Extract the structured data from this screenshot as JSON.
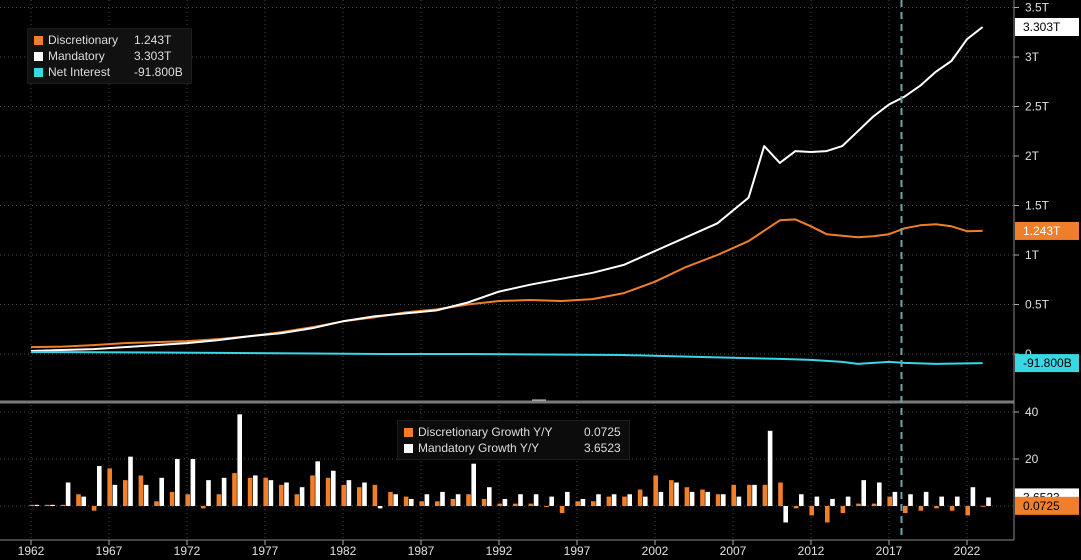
{
  "chart_data": [
    {
      "type": "line",
      "title": "",
      "xlabel": "",
      "ylabel": "",
      "x_range": [
        1962,
        2024
      ],
      "ylim": [
        -0.1,
        3.5
      ],
      "y_ticks": [
        0,
        0.5,
        1,
        1.5,
        2,
        2.5,
        3,
        3.5
      ],
      "y_tick_labels": [
        "0",
        "0.5T",
        "1T",
        "1.5T",
        "2T",
        "2.5T",
        "3T",
        "3.5T"
      ],
      "grid": true,
      "legend_position": "top-left",
      "vertical_marker_x": 2017.8,
      "series": [
        {
          "name": "Discretionary",
          "legend_value": "1.243T",
          "last_label": "1.243T",
          "color": "#f07f2b",
          "points": [
            [
              1962,
              0.07
            ],
            [
              1964,
              0.075
            ],
            [
              1966,
              0.09
            ],
            [
              1968,
              0.11
            ],
            [
              1970,
              0.12
            ],
            [
              1972,
              0.13
            ],
            [
              1974,
              0.15
            ],
            [
              1976,
              0.18
            ],
            [
              1978,
              0.22
            ],
            [
              1980,
              0.27
            ],
            [
              1982,
              0.33
            ],
            [
              1984,
              0.37
            ],
            [
              1986,
              0.42
            ],
            [
              1988,
              0.45
            ],
            [
              1990,
              0.5
            ],
            [
              1992,
              0.535
            ],
            [
              1994,
              0.545
            ],
            [
              1996,
              0.535
            ],
            [
              1998,
              0.555
            ],
            [
              2000,
              0.615
            ],
            [
              2002,
              0.73
            ],
            [
              2004,
              0.88
            ],
            [
              2006,
              1.0
            ],
            [
              2008,
              1.14
            ],
            [
              2010,
              1.35
            ],
            [
              2011,
              1.36
            ],
            [
              2012,
              1.29
            ],
            [
              2013,
              1.21
            ],
            [
              2015,
              1.18
            ],
            [
              2016,
              1.19
            ],
            [
              2017,
              1.21
            ],
            [
              2018,
              1.27
            ],
            [
              2019,
              1.3
            ],
            [
              2020,
              1.31
            ],
            [
              2021,
              1.29
            ],
            [
              2022,
              1.24
            ],
            [
              2023,
              1.243
            ]
          ]
        },
        {
          "name": "Mandatory",
          "legend_value": "3.303T",
          "last_label": "3.303T",
          "color": "#ffffff",
          "points": [
            [
              1962,
              0.03
            ],
            [
              1964,
              0.04
            ],
            [
              1966,
              0.05
            ],
            [
              1968,
              0.07
            ],
            [
              1970,
              0.09
            ],
            [
              1972,
              0.11
            ],
            [
              1974,
              0.14
            ],
            [
              1976,
              0.18
            ],
            [
              1978,
              0.21
            ],
            [
              1980,
              0.26
            ],
            [
              1982,
              0.33
            ],
            [
              1984,
              0.38
            ],
            [
              1986,
              0.41
            ],
            [
              1988,
              0.44
            ],
            [
              1990,
              0.52
            ],
            [
              1992,
              0.63
            ],
            [
              1994,
              0.7
            ],
            [
              1996,
              0.76
            ],
            [
              1998,
              0.82
            ],
            [
              2000,
              0.9
            ],
            [
              2002,
              1.04
            ],
            [
              2004,
              1.18
            ],
            [
              2006,
              1.32
            ],
            [
              2008,
              1.58
            ],
            [
              2009,
              2.1
            ],
            [
              2010,
              1.93
            ],
            [
              2011,
              2.05
            ],
            [
              2012,
              2.04
            ],
            [
              2013,
              2.05
            ],
            [
              2014,
              2.1
            ],
            [
              2015,
              2.25
            ],
            [
              2016,
              2.4
            ],
            [
              2017,
              2.52
            ],
            [
              2018,
              2.6
            ],
            [
              2019,
              2.71
            ],
            [
              2020,
              2.85
            ],
            [
              2021,
              2.96
            ],
            [
              2022,
              3.18
            ],
            [
              2023,
              3.303
            ]
          ]
        },
        {
          "name": "Net Interest",
          "legend_value": "-91.800B",
          "last_label": "-91.800B",
          "color": "#39d6e6",
          "points": [
            [
              1962,
              0.02
            ],
            [
              1970,
              0.015
            ],
            [
              1980,
              0.005
            ],
            [
              1985,
              0.0
            ],
            [
              1990,
              0.0
            ],
            [
              1995,
              -0.005
            ],
            [
              2000,
              -0.01
            ],
            [
              2005,
              -0.03
            ],
            [
              2010,
              -0.05
            ],
            [
              2012,
              -0.06
            ],
            [
              2014,
              -0.08
            ],
            [
              2015,
              -0.1
            ],
            [
              2016,
              -0.09
            ],
            [
              2017,
              -0.08
            ],
            [
              2018,
              -0.09
            ],
            [
              2020,
              -0.1
            ],
            [
              2023,
              -0.0918
            ]
          ]
        }
      ]
    },
    {
      "type": "bar",
      "title": "",
      "xlabel": "",
      "ylabel": "",
      "x_range": [
        1962,
        2024
      ],
      "ylim": [
        -10,
        40
      ],
      "y_ticks": [
        20,
        40
      ],
      "y_tick_labels": [
        "20",
        "40"
      ],
      "x_ticks": [
        1962,
        1967,
        1972,
        1977,
        1982,
        1987,
        1992,
        1997,
        2002,
        2007,
        2012,
        2017,
        2022
      ],
      "grid": true,
      "legend_position": "top-center",
      "vertical_marker_x": 2017.8,
      "categories": [
        1962,
        1963,
        1964,
        1965,
        1966,
        1967,
        1968,
        1969,
        1970,
        1971,
        1972,
        1973,
        1974,
        1975,
        1976,
        1977,
        1978,
        1979,
        1980,
        1981,
        1982,
        1983,
        1984,
        1985,
        1986,
        1987,
        1988,
        1989,
        1990,
        1991,
        1992,
        1993,
        1994,
        1995,
        1996,
        1997,
        1998,
        1999,
        2000,
        2001,
        2002,
        2003,
        2004,
        2005,
        2006,
        2007,
        2008,
        2009,
        2010,
        2011,
        2012,
        2013,
        2014,
        2015,
        2016,
        2017,
        2018,
        2019,
        2020,
        2021,
        2022,
        2023
      ],
      "series": [
        {
          "name": "Discretionary Growth Y/Y",
          "legend_value": "0.0725",
          "last_label": "0.0725",
          "color": "#f07f2b",
          "values": [
            0.5,
            0.5,
            0.5,
            5,
            -2,
            16,
            11,
            13,
            2,
            6,
            5,
            -1,
            5,
            14,
            12,
            12,
            9,
            5,
            13,
            12,
            9,
            8,
            9,
            6,
            4,
            2,
            2,
            3,
            5,
            3,
            1,
            1,
            1,
            0,
            -3,
            2,
            2,
            4,
            4,
            7,
            13,
            11,
            8,
            7,
            5,
            9,
            9,
            9,
            10,
            -1,
            -4,
            -7,
            -3,
            1,
            1,
            4,
            -3,
            -2,
            -1,
            -2,
            -4,
            0.0725
          ]
        },
        {
          "name": "Mandatory Growth Y/Y",
          "legend_value": "3.6523",
          "last_label": "3.6523",
          "color": "#ffffff",
          "values": [
            0.5,
            0.5,
            10,
            4,
            17,
            9,
            21,
            9,
            12,
            20,
            20,
            11,
            12,
            39,
            13,
            11,
            10,
            8,
            19,
            15,
            11,
            10,
            -1,
            5,
            3,
            5,
            6,
            5,
            18,
            8,
            3,
            5,
            5,
            4,
            6,
            3,
            5,
            5,
            5,
            4,
            6,
            10,
            6,
            6,
            5,
            4,
            9,
            32,
            -7,
            5,
            4,
            3,
            4,
            11,
            10,
            6,
            5,
            6,
            4,
            4,
            8,
            3.6523
          ]
        }
      ]
    }
  ]
}
